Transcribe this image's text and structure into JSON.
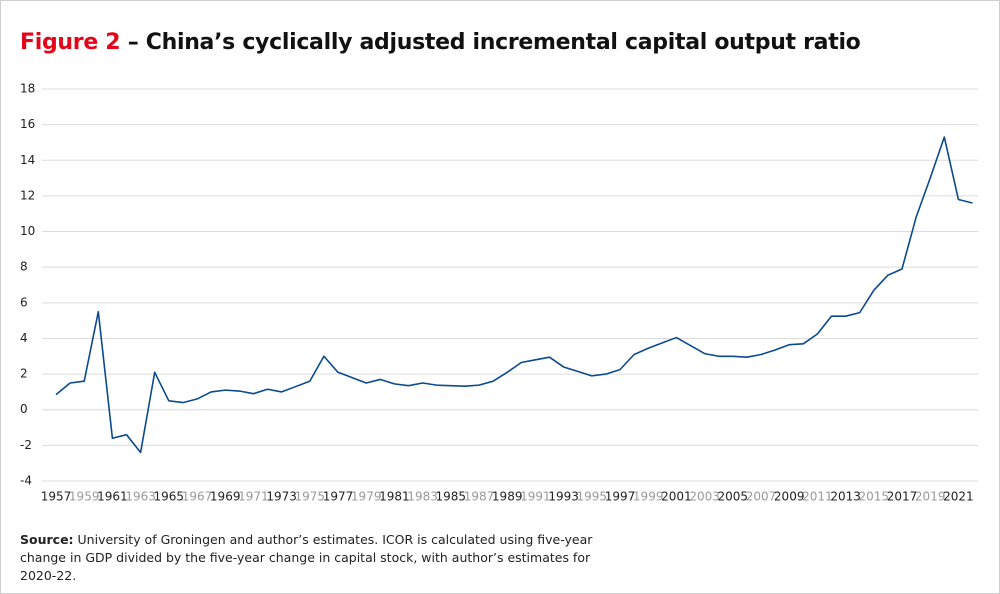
{
  "chart_data": {
    "type": "line",
    "title_prefix": "Figure 2",
    "title": "– China’s cyclically adjusted incremental capital output ratio",
    "source_label": "Source:",
    "source": "University of Groningen and author’s estimates. ICOR is calculated using five-year change in GDP divided by the five-year change in capital stock, with author’s estimates for 2020-22.",
    "categories": [
      "1957",
      null,
      "1959",
      null,
      "1961",
      null,
      "1963",
      null,
      "1965",
      null,
      "1967",
      null,
      "1969",
      null,
      "1971",
      null,
      "1973",
      null,
      "1975",
      null,
      "1977",
      null,
      "1979",
      null,
      "1981",
      null,
      "1983",
      null,
      "1985",
      null,
      "1987",
      null,
      "1989",
      null,
      "1991",
      null,
      "1993",
      null,
      "1995",
      null,
      "1997",
      null,
      "1999",
      null,
      "2001",
      null,
      "2003",
      null,
      "2005",
      null,
      "2007",
      null,
      "2009",
      null,
      "2011",
      null,
      "2013",
      null,
      "2015",
      null,
      "2017",
      null,
      "2019",
      null,
      "2021",
      null
    ],
    "tick_label_colors": [
      "#222222",
      "#9a9a9a"
    ],
    "series": [
      {
        "name": "ICOR",
        "color": "#0b4a8f",
        "values": [
          0.85,
          1.5,
          1.6,
          5.5,
          -1.6,
          -1.4,
          -2.4,
          2.1,
          0.5,
          0.4,
          0.6,
          1.0,
          1.1,
          1.05,
          0.9,
          1.15,
          1.0,
          1.3,
          1.6,
          3.0,
          2.1,
          1.8,
          1.5,
          1.7,
          1.45,
          1.35,
          1.5,
          1.38,
          1.35,
          1.32,
          1.38,
          1.6,
          2.1,
          2.65,
          2.8,
          2.95,
          2.4,
          2.15,
          1.9,
          2.0,
          2.25,
          3.1,
          3.45,
          3.75,
          4.05,
          3.6,
          3.15,
          3.0,
          3.0,
          2.95,
          3.1,
          3.35,
          3.65,
          3.7,
          4.25,
          5.25,
          5.25,
          5.45,
          6.7,
          7.55,
          7.9,
          10.8,
          13.0,
          15.3,
          11.8,
          11.6
        ]
      }
    ],
    "ylim": [
      -4,
      18
    ],
    "yticks": [
      -4,
      -2,
      0,
      2,
      4,
      6,
      8,
      10,
      12,
      14,
      16,
      18
    ],
    "grid": true
  }
}
